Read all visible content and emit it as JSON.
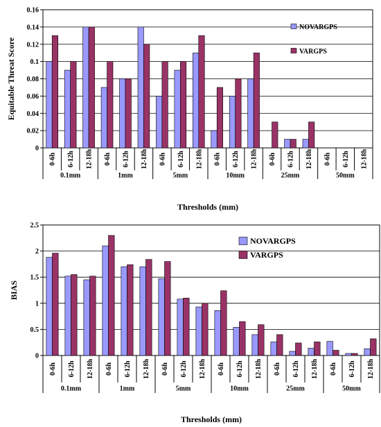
{
  "chart_data": [
    {
      "type": "bar",
      "ylabel": "Equitable Threat Score",
      "xlabel": "Thresholds (mm)",
      "ylim": [
        0,
        0.16
      ],
      "yticks": [
        "0",
        "0.02",
        "0.04",
        "0.06",
        "0.08",
        "0.1",
        "0.12",
        "0.14",
        "0.16"
      ],
      "grid": true,
      "legend": "right",
      "groups": [
        "0.1mm",
        "1mm",
        "5mm",
        "10mm",
        "25mm",
        "50mm"
      ],
      "subcategories": [
        "0-6h",
        "6-12h",
        "12-18h"
      ],
      "series": [
        {
          "name": "NOVARGPS",
          "color": "#9999ff",
          "values": [
            0.1,
            0.09,
            0.14,
            0.07,
            0.08,
            0.14,
            0.06,
            0.09,
            0.11,
            0.02,
            0.06,
            0.08,
            0,
            0.01,
            0.01,
            0,
            0,
            0
          ]
        },
        {
          "name": "VARGPS",
          "color": "#993366",
          "values": [
            0.13,
            0.1,
            0.14,
            0.1,
            0.08,
            0.12,
            0.1,
            0.1,
            0.13,
            0.07,
            0.08,
            0.11,
            0.03,
            0.01,
            0.03,
            0,
            0,
            0
          ]
        }
      ]
    },
    {
      "type": "bar",
      "ylabel": "BIAS",
      "xlabel": "Thresholds (mm)",
      "ylim": [
        0,
        2.5
      ],
      "yticks": [
        "0",
        "0.5",
        "1",
        "1.5",
        "2",
        "2.5"
      ],
      "grid": true,
      "legend": "top-right",
      "groups": [
        "0.1mm",
        "1mm",
        "5mm",
        "10mm",
        "25mm",
        "50mm"
      ],
      "subcategories": [
        "0-6h",
        "6-12h",
        "12-18h"
      ],
      "series": [
        {
          "name": "NOVARGPS",
          "color": "#9999ff",
          "values": [
            1.88,
            1.52,
            1.45,
            2.1,
            1.7,
            1.7,
            1.47,
            1.08,
            0.93,
            0.86,
            0.54,
            0.4,
            0.26,
            0.08,
            0.14,
            0.27,
            0.04,
            0.13
          ]
        },
        {
          "name": "VARGPS",
          "color": "#993366",
          "values": [
            1.96,
            1.55,
            1.52,
            2.3,
            1.74,
            1.84,
            1.8,
            1.1,
            1.0,
            1.24,
            0.65,
            0.59,
            0.4,
            0.24,
            0.26,
            0.1,
            0.04,
            0.32
          ]
        }
      ]
    }
  ]
}
